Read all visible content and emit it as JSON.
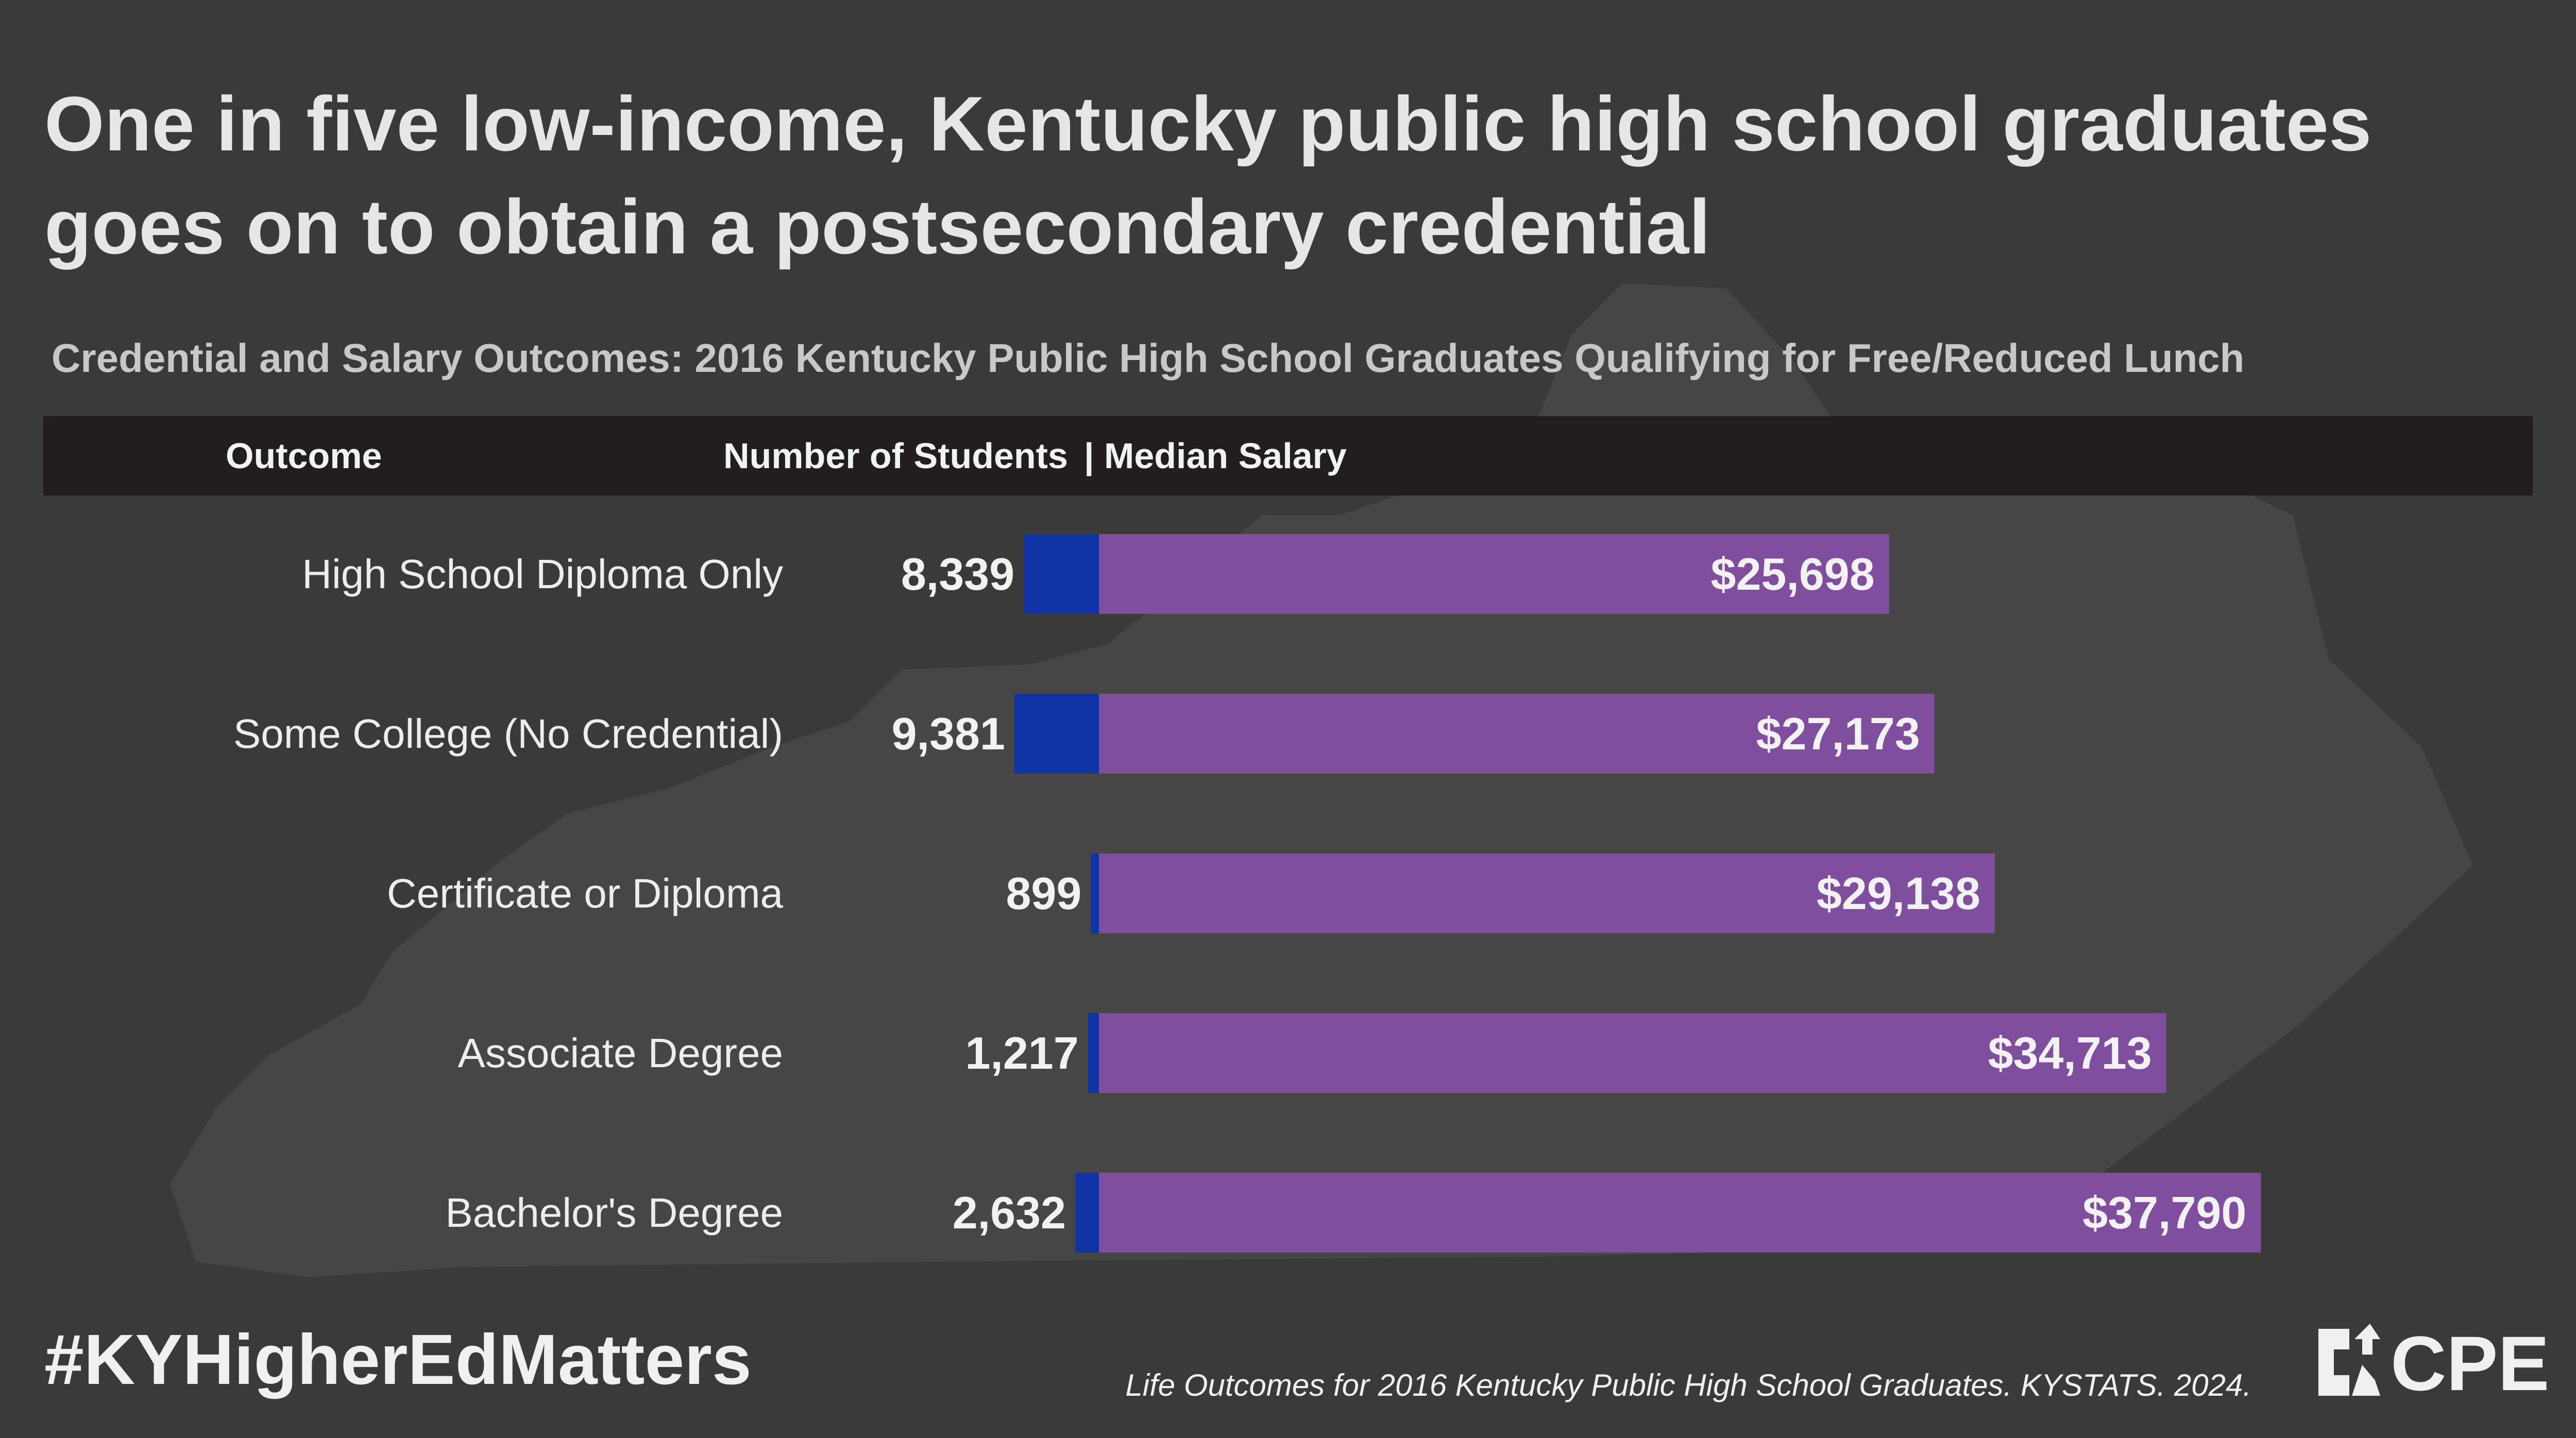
{
  "title_line1": "One in five low-income, Kentucky public high school graduates",
  "title_line2": "goes on to obtain a postsecondary credential",
  "subtitle": "Credential and Salary Outcomes: 2016 Kentucky Public High School Graduates Qualifying for Free/Reduced Lunch",
  "header": {
    "outcome": "Outcome",
    "students": "Number of Students",
    "salary": "| Median Salary"
  },
  "footer": {
    "hashtag": "#KYHigherEdMatters",
    "source": "Life Outcomes for 2016 Kentucky Public High School Graduates. KYSTATS. 2024.",
    "logo": "CPE"
  },
  "colors": {
    "background": "#3a3a3a",
    "map": "#464646",
    "students_bar": "#1034a6",
    "salary_bar": "#7f4e9f",
    "header_bar": "#221e1f"
  },
  "chart_data": {
    "type": "bar",
    "categories": [
      "High School Diploma Only",
      "Some College (No Credential)",
      "Certificate or Diploma",
      "Associate Degree",
      "Bachelor's Degree"
    ],
    "series": [
      {
        "name": "Number of Students",
        "values": [
          8339,
          9381,
          899,
          1217,
          2632
        ],
        "labels": [
          "8,339",
          "9,381",
          "899",
          "1,217",
          "2,632"
        ]
      },
      {
        "name": "Median Salary",
        "values": [
          25698,
          27173,
          29138,
          34713,
          37790
        ],
        "labels": [
          "$25,698",
          "$27,173",
          "$29,138",
          "$34,713",
          "$37,790"
        ]
      }
    ]
  }
}
